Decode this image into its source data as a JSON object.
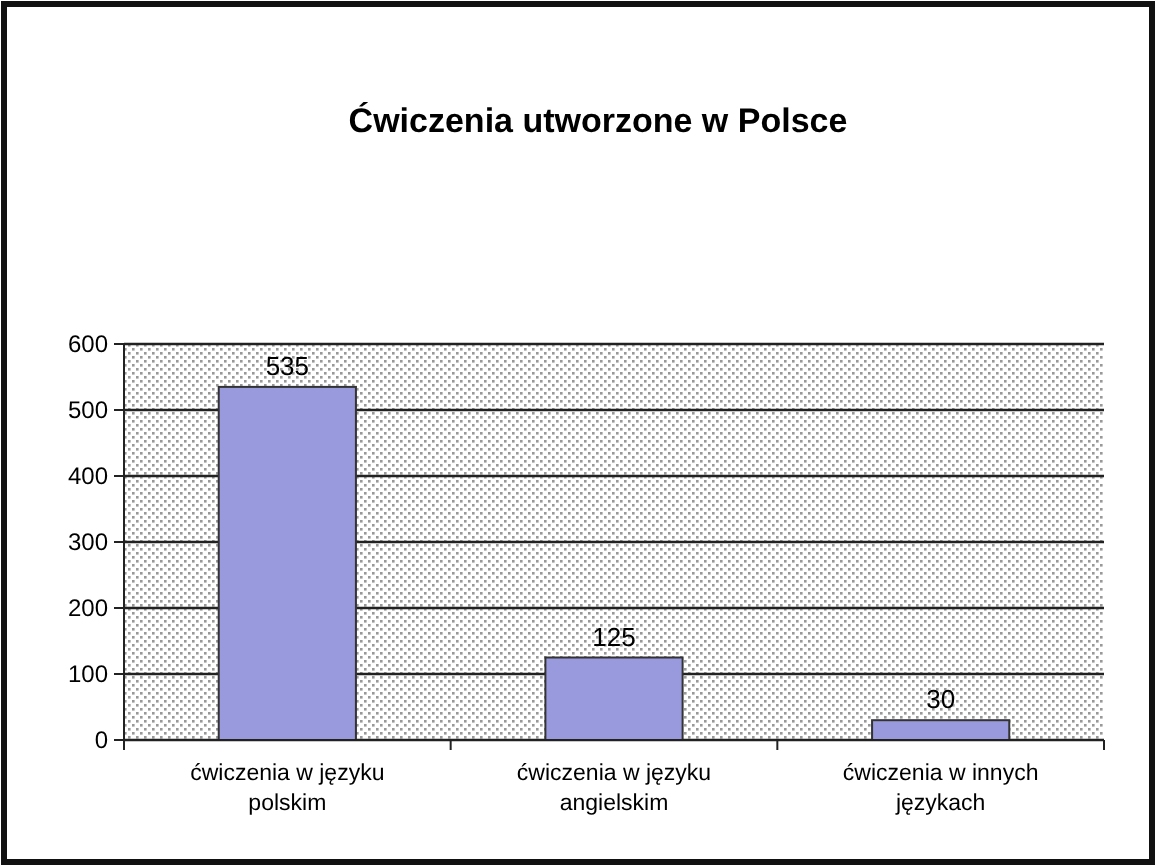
{
  "chart_data": {
    "type": "bar",
    "title": "Ćwiczenia utworzone w Polsce",
    "categories": [
      "ćwiczenia w języku polskim",
      "ćwiczenia w języku angielskim",
      "ćwiczenia w innych językach"
    ],
    "values": [
      535,
      125,
      30
    ],
    "color": "#9999dd",
    "ylim": [
      0,
      600
    ],
    "yticks": [
      0,
      100,
      200,
      300,
      400,
      500,
      600
    ],
    "grid": "y",
    "data_labels": true
  }
}
